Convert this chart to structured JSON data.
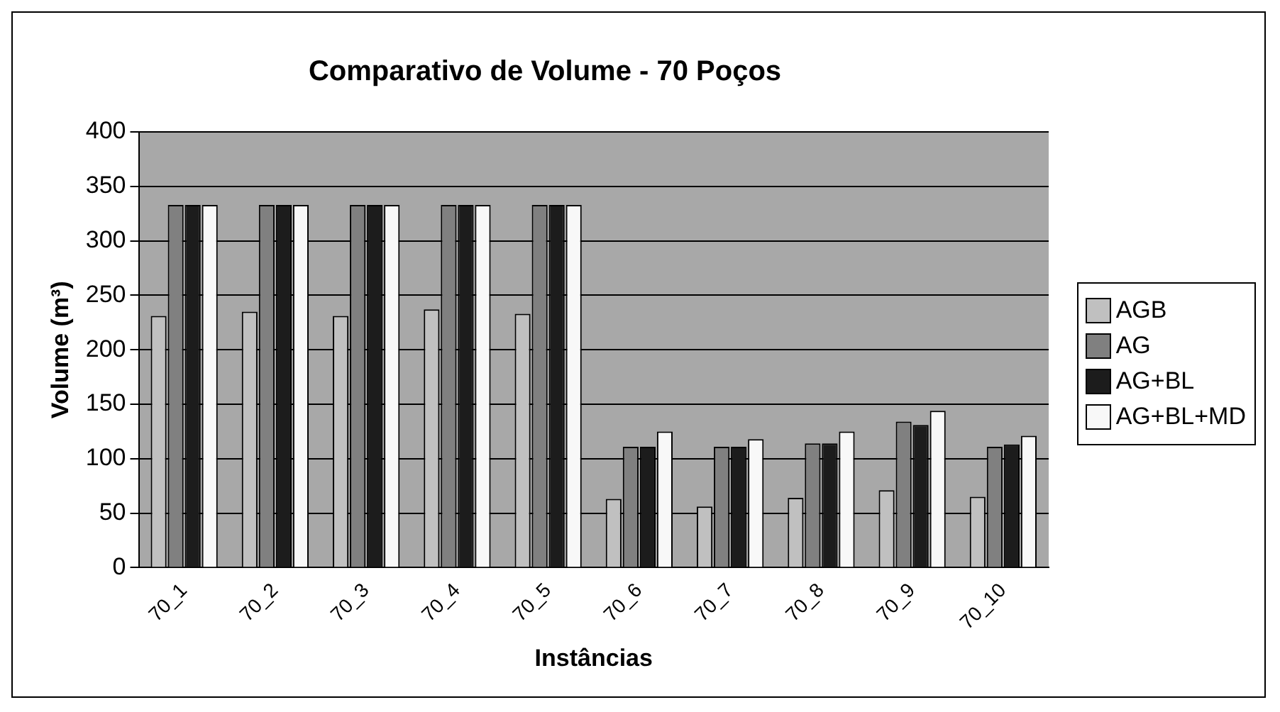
{
  "chart_data": {
    "type": "bar",
    "title": "Comparativo de Volume - 70 Poços",
    "xlabel": "Instâncias",
    "ylabel": "Volume (m³)",
    "categories": [
      "70_1",
      "70_2",
      "70_3",
      "70_4",
      "70_5",
      "70_6",
      "70_7",
      "70_8",
      "70_9",
      "70_10"
    ],
    "series": [
      {
        "name": "AGB",
        "color": "#c0c0c0",
        "values": [
          231,
          235,
          231,
          237,
          233,
          63,
          56,
          64,
          71,
          65
        ]
      },
      {
        "name": "AG",
        "color": "#808080",
        "values": [
          333,
          333,
          333,
          333,
          333,
          111,
          111,
          114,
          134,
          111
        ]
      },
      {
        "name": "AG+BL",
        "color": "#1c1c1c",
        "values": [
          333,
          333,
          333,
          333,
          333,
          111,
          111,
          114,
          131,
          113
        ]
      },
      {
        "name": "AG+BL+MD",
        "color": "#f8f8f8",
        "values": [
          333,
          333,
          333,
          333,
          333,
          125,
          118,
          125,
          144,
          121
        ]
      }
    ],
    "ylim": [
      0,
      400
    ],
    "yticks": [
      0,
      50,
      100,
      150,
      200,
      250,
      300,
      350,
      400
    ],
    "grid": "y",
    "legend": "right"
  }
}
